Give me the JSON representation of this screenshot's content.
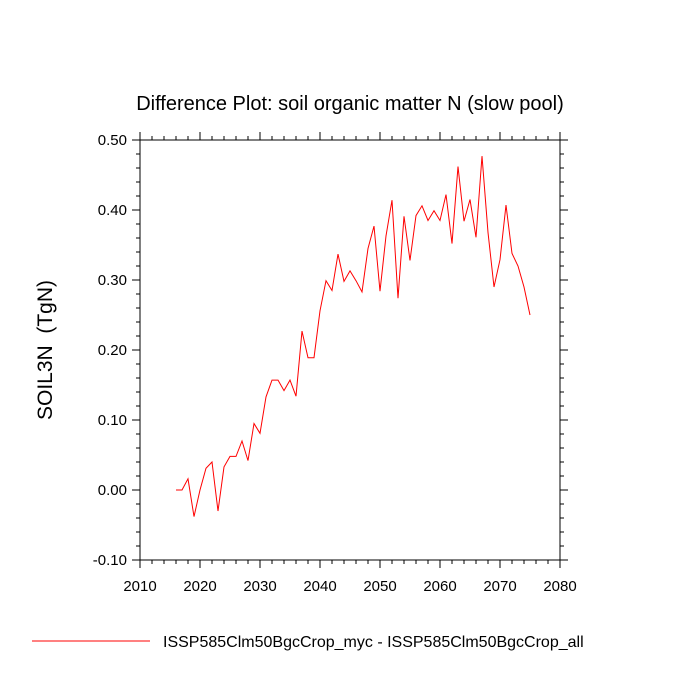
{
  "chart_data": {
    "type": "line",
    "title": "Difference Plot: soil organic matter N (slow pool)",
    "xlabel": "",
    "ylabel": "SOIL3N  (TgN)",
    "xlim": [
      2010,
      2080
    ],
    "ylim": [
      -0.1,
      0.5
    ],
    "x_ticks": [
      2010,
      2020,
      2030,
      2040,
      2050,
      2060,
      2070,
      2080
    ],
    "x_tick_labels": [
      "2010",
      "2020",
      "2030",
      "2040",
      "2050",
      "2060",
      "2070",
      "2080"
    ],
    "y_ticks": [
      -0.1,
      0.0,
      0.1,
      0.2,
      0.3,
      0.4,
      0.5
    ],
    "y_tick_labels": [
      "-0.10",
      "0.00",
      "0.10",
      "0.20",
      "0.30",
      "0.40",
      "0.50"
    ],
    "grid": false,
    "legend_position": "bottom",
    "series": [
      {
        "name": "ISSP585Clm50BgcCrop_myc - ISSP585Clm50BgcCrop_all",
        "color": "#ff0000",
        "x": [
          2016,
          2017,
          2018,
          2019,
          2020,
          2021,
          2022,
          2023,
          2024,
          2025,
          2026,
          2027,
          2028,
          2029,
          2030,
          2031,
          2032,
          2033,
          2034,
          2035,
          2036,
          2037,
          2038,
          2039,
          2040,
          2041,
          2042,
          2043,
          2044,
          2045,
          2046,
          2047,
          2048,
          2049,
          2050,
          2051,
          2052,
          2053,
          2054,
          2055,
          2056,
          2057,
          2058,
          2059,
          2060,
          2061,
          2062,
          2063,
          2064,
          2065,
          2066,
          2067,
          2068,
          2069,
          2070,
          2071,
          2072,
          2073,
          2074,
          2075
        ],
        "values": [
          0.0,
          0.0,
          0.016,
          -0.038,
          0.0,
          0.031,
          0.04,
          -0.03,
          0.033,
          0.048,
          0.048,
          0.07,
          0.042,
          0.095,
          0.081,
          0.133,
          0.157,
          0.157,
          0.142,
          0.157,
          0.134,
          0.227,
          0.189,
          0.189,
          0.256,
          0.299,
          0.285,
          0.337,
          0.298,
          0.313,
          0.299,
          0.283,
          0.345,
          0.377,
          0.284,
          0.363,
          0.414,
          0.274,
          0.391,
          0.328,
          0.392,
          0.406,
          0.385,
          0.399,
          0.385,
          0.422,
          0.352,
          0.462,
          0.384,
          0.415,
          0.361,
          0.477,
          0.368,
          0.29,
          0.329,
          0.407,
          0.338,
          0.32,
          0.29,
          0.25
        ]
      }
    ]
  }
}
